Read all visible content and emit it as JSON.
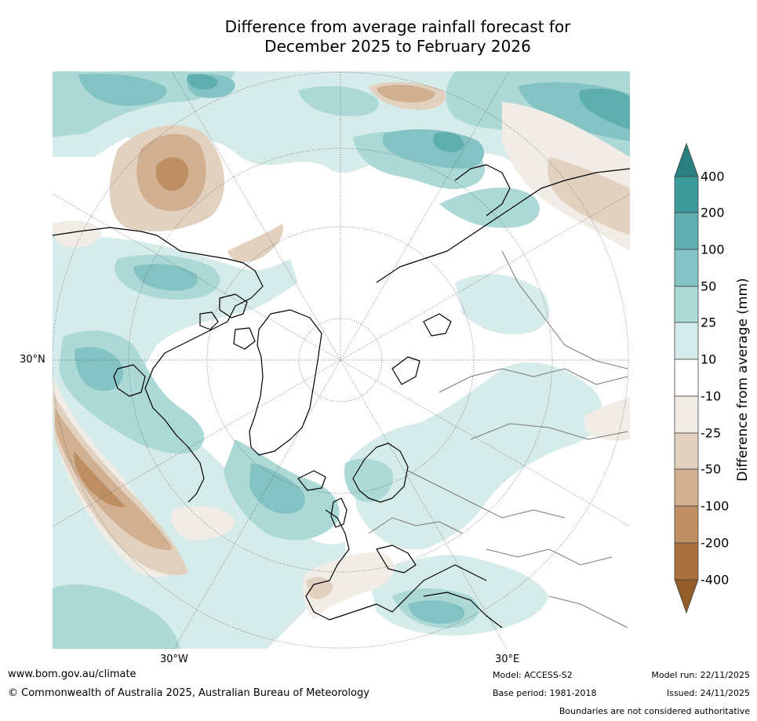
{
  "title": {
    "line1": "Difference from average rainfall forecast for",
    "line2": "December 2025 to February 2026"
  },
  "axis": {
    "lat_label": "30°N",
    "lon_labels": [
      "30°W",
      "30°E"
    ]
  },
  "colorbar": {
    "label": "Difference from average (mm)",
    "ticks": [
      "400",
      "200",
      "100",
      "50",
      "25",
      "10",
      "-10",
      "-25",
      "-50",
      "-100",
      "-200",
      "-400"
    ],
    "colors": {
      "gt400": "#2a7f7f",
      "c200_400": "#3b9b9b",
      "c100_200": "#5eaeae",
      "c50_100": "#84c3c3",
      "c25_50": "#acd8d6",
      "c10_25": "#d6ecea",
      "neutral": "#ffffff",
      "n10_25": "#f1ece6",
      "n25_50": "#e3d1c0",
      "n50_100": "#d0b091",
      "n100_200": "#bd8f63",
      "n200_400": "#a97140",
      "lt400": "#935d2a"
    }
  },
  "footer": {
    "website": "www.bom.gov.au/climate",
    "copyright": "© Commonwealth of Australia 2025, Australian Bureau of Meteorology",
    "model": "Model: ACCESS-S2",
    "base_period": "Base period: 1981-2018",
    "model_run": "Model run: 22/11/2025",
    "issued": "Issued: 24/11/2025",
    "disclaimer": "Boundaries are not considered authoritative"
  }
}
